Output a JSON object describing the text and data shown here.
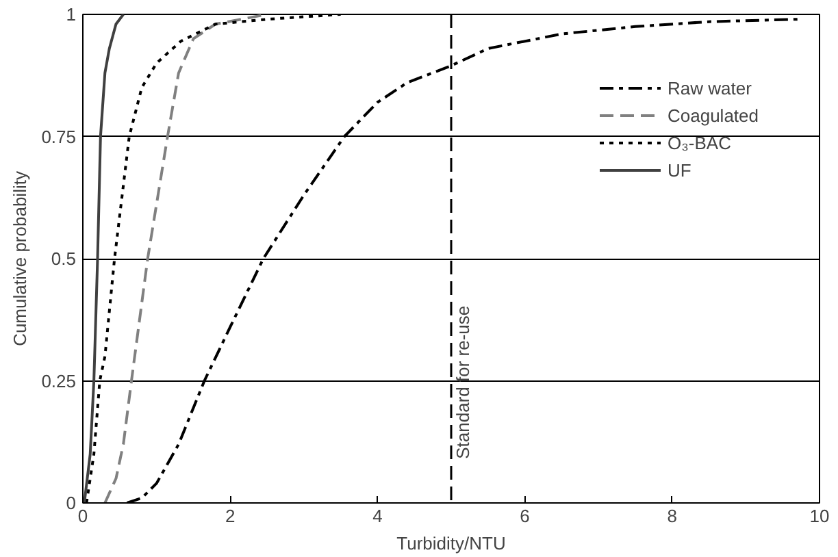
{
  "chart_data": {
    "type": "line",
    "xlabel": "Turbidity/NTU",
    "ylabel": "Cumulative probability",
    "xlim": [
      0,
      10
    ],
    "ylim": [
      0,
      1
    ],
    "xticks": [
      0,
      2,
      4,
      6,
      8,
      10
    ],
    "yticks": [
      0,
      0.25,
      0.5,
      {
        "value": 0.75,
        "label": "0.75"
      },
      {
        "value": 1,
        "label": "1"
      }
    ],
    "grid": "y",
    "legend": "top right",
    "marker": "none",
    "series": [
      {
        "name": "Raw water",
        "color": "#000000",
        "line_style": "dashdot",
        "x": [
          0.6,
          0.8,
          1.0,
          1.3,
          1.65,
          2.0,
          2.45,
          3.0,
          3.55,
          4.0,
          4.4,
          5.0,
          5.5,
          6.5,
          7.5,
          8.5,
          9.7
        ],
        "values": [
          0,
          0.01,
          0.04,
          0.12,
          0.25,
          0.36,
          0.5,
          0.63,
          0.75,
          0.82,
          0.86,
          0.895,
          0.93,
          0.96,
          0.975,
          0.985,
          0.99
        ]
      },
      {
        "name": "Coagulated",
        "color": "#808080",
        "line_style": "dashed",
        "x": [
          0.3,
          0.45,
          0.55,
          0.66,
          0.88,
          1.15,
          1.3,
          1.5,
          1.8,
          2.5
        ],
        "values": [
          0,
          0.05,
          0.12,
          0.25,
          0.5,
          0.75,
          0.88,
          0.95,
          0.98,
          1
        ]
      },
      {
        "name": "O₃-BAC",
        "color": "#000000",
        "line_style": "dotted",
        "x": [
          0.05,
          0.15,
          0.23,
          0.3,
          0.43,
          0.63,
          0.8,
          1.0,
          1.33,
          1.8,
          2.5,
          3.5
        ],
        "values": [
          0,
          0.1,
          0.25,
          0.3,
          0.5,
          0.75,
          0.85,
          0.9,
          0.945,
          0.98,
          0.99,
          1
        ]
      },
      {
        "name": "UF",
        "color": "#404040",
        "line_style": "solid",
        "x": [
          0.02,
          0.1,
          0.15,
          0.2,
          0.24,
          0.3,
          0.36,
          0.45,
          0.55
        ],
        "values": [
          0,
          0.1,
          0.25,
          0.5,
          0.75,
          0.88,
          0.93,
          0.98,
          1
        ]
      }
    ],
    "ref_lines": [
      {
        "axis": "x",
        "value": 5,
        "label": "Standard for re-use",
        "color": "#000000",
        "line_style": "dashed"
      }
    ]
  }
}
